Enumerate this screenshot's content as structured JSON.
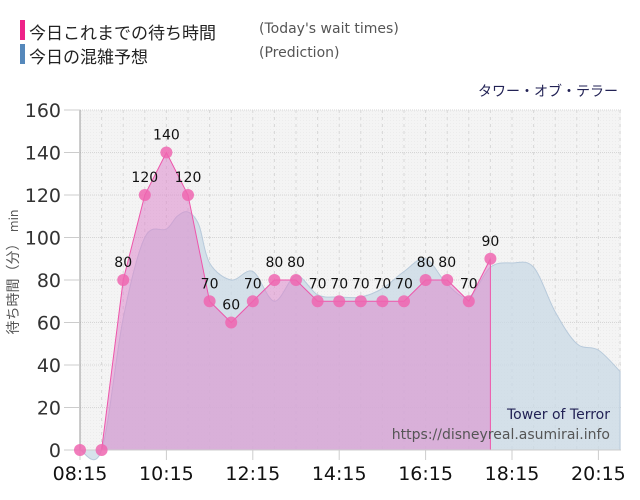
{
  "legend": {
    "actual": {
      "label": "今日これまでの待ち時間",
      "sub": "(Today's wait times)",
      "color": "#ee2288"
    },
    "prediction": {
      "label": "今日の混雑予想",
      "sub": "(Prediction)",
      "color": "#5588bb"
    }
  },
  "attraction_title": "タワー・オブ・テラー",
  "watermark": {
    "name": "Tower of Terror",
    "url": "https://disneyreal.asumirai.info"
  },
  "y_axis": {
    "label": "待ち時間（分）",
    "unit": "min"
  },
  "chart_data": {
    "type": "area",
    "title": "タワー・オブ・テラー",
    "xlabel": "",
    "ylabel": "待ち時間（分）min",
    "ylim": [
      0,
      160
    ],
    "yticks": [
      0,
      20,
      40,
      60,
      80,
      100,
      120,
      140,
      160
    ],
    "xticks": [
      "08:15",
      "10:15",
      "12:15",
      "14:15",
      "16:15",
      "18:15",
      "20:15"
    ],
    "grid": true,
    "legend_position": "top-left",
    "series": [
      {
        "name": "今日これまでの待ち時間 (Today's wait times)",
        "color": "#ee2288",
        "x": [
          "08:15",
          "08:45",
          "09:15",
          "09:45",
          "10:15",
          "10:45",
          "11:15",
          "11:45",
          "12:15",
          "12:45",
          "13:15",
          "13:45",
          "14:15",
          "14:45",
          "15:15",
          "15:45",
          "16:15",
          "16:45",
          "17:15",
          "17:45"
        ],
        "values": [
          0,
          0,
          80,
          120,
          140,
          120,
          70,
          60,
          70,
          80,
          80,
          70,
          70,
          70,
          70,
          70,
          80,
          80,
          70,
          90
        ],
        "data_labels": true
      },
      {
        "name": "今日の混雑予想 (Prediction)",
        "color": "#5588bb",
        "x": [
          "08:15",
          "08:45",
          "09:15",
          "09:45",
          "10:15",
          "10:30",
          "10:45",
          "11:00",
          "11:15",
          "11:45",
          "12:15",
          "12:45",
          "13:15",
          "13:45",
          "14:15",
          "14:45",
          "15:15",
          "15:45",
          "16:15",
          "16:45",
          "17:15",
          "17:45",
          "18:15",
          "18:45",
          "19:15",
          "19:45",
          "20:15",
          "20:45"
        ],
        "values": [
          0,
          0,
          62,
          100,
          104,
          110,
          112,
          106,
          88,
          80,
          84,
          70,
          82,
          73,
          72,
          72,
          76,
          84,
          90,
          78,
          72,
          86,
          88,
          86,
          65,
          50,
          47,
          37
        ]
      }
    ]
  }
}
